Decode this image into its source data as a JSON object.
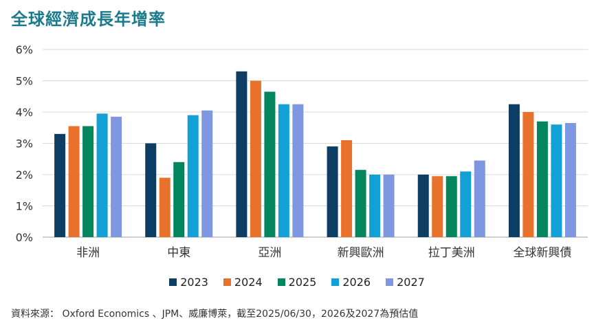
{
  "title": "全球經濟成長年增率",
  "source_note": "資料來源： Oxford Economics 、JPM、威廉博萊，截至2025/06/30，2026及2027為預估值",
  "colors": [
    "#0d3d63",
    "#e8722c",
    "#03865e",
    "#12a0d7",
    "#7f97e0"
  ],
  "chart_data": {
    "type": "bar",
    "categories": [
      "非洲",
      "中東",
      "亞洲",
      "新興歐洲",
      "拉丁美洲",
      "全球新興債"
    ],
    "series": [
      {
        "name": "2023",
        "values": [
          3.3,
          3.0,
          5.3,
          2.9,
          2.0,
          4.25
        ]
      },
      {
        "name": "2024",
        "values": [
          3.55,
          1.9,
          5.0,
          3.1,
          1.95,
          4.0
        ]
      },
      {
        "name": "2025",
        "values": [
          3.55,
          2.4,
          4.65,
          2.15,
          1.95,
          3.7
        ]
      },
      {
        "name": "2026",
        "values": [
          3.95,
          3.9,
          4.25,
          2.0,
          2.1,
          3.6
        ]
      },
      {
        "name": "2027",
        "values": [
          3.85,
          4.05,
          4.25,
          2.0,
          2.45,
          3.65
        ]
      }
    ],
    "ylim": [
      0,
      6
    ],
    "yticks": [
      "0%",
      "1%",
      "2%",
      "3%",
      "4%",
      "5%",
      "6%"
    ],
    "xlabel": "",
    "ylabel": "",
    "grid": true,
    "legend_position": "bottom"
  }
}
